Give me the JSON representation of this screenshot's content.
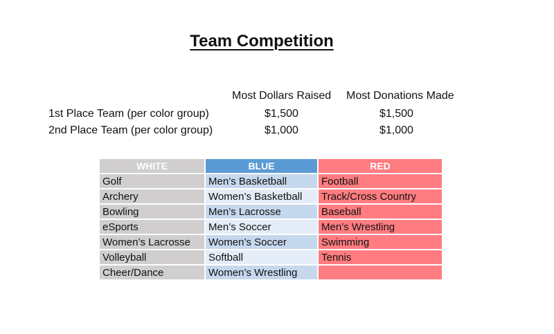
{
  "title": "Team Competition",
  "prizes": {
    "headers": [
      "Most Dollars Raised",
      "Most Donations Made"
    ],
    "rows": [
      {
        "label": "1st Place Team (per color group)",
        "dollars": "$1,500",
        "donations": "$1,500"
      },
      {
        "label": "2nd Place Team (per color group)",
        "dollars": "$1,000",
        "donations": "$1,000"
      }
    ]
  },
  "teams": {
    "headers": [
      "WHITE",
      "BLUE",
      "RED"
    ],
    "colors": {
      "white": "#d0cece",
      "blue": "#5b9bd5",
      "red": "#ff7c80",
      "blue_light": "#c6d8ee",
      "blue_lighter": "#e4edf7"
    },
    "rows": [
      [
        "Golf",
        "Men’s Basketball",
        "Football"
      ],
      [
        "Archery",
        "Women’s Basketball",
        "Track/Cross Country"
      ],
      [
        "Bowling",
        "Men’s Lacrosse",
        "Baseball"
      ],
      [
        "eSports",
        "Men’s Soccer",
        "Men’s Wrestling"
      ],
      [
        "Women’s Lacrosse",
        "Women’s Soccer",
        "Swimming"
      ],
      [
        "Volleyball",
        "Softball",
        "Tennis"
      ],
      [
        "Cheer/Dance",
        "Women’s Wrestling",
        ""
      ]
    ]
  }
}
